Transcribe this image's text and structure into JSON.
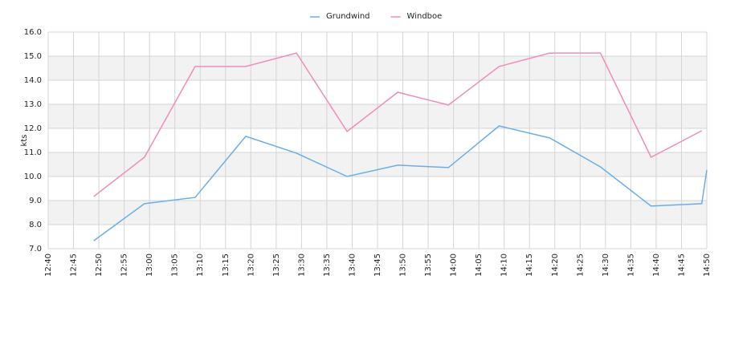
{
  "chart_data": {
    "type": "line",
    "ylabel": "kts",
    "x": [
      "12:49",
      "12:59",
      "13:09",
      "13:19",
      "13:29",
      "13:39",
      "13:49",
      "13:59",
      "14:09",
      "14:19",
      "14:29",
      "14:39",
      "14:49",
      "14:50"
    ],
    "series": [
      {
        "name": "Grundwind",
        "color": "#6aaee8",
        "values": [
          7.33,
          8.87,
          9.13,
          11.67,
          10.97,
          10.0,
          10.47,
          10.37,
          12.1,
          11.6,
          10.4,
          8.77,
          8.87,
          10.27
        ]
      },
      {
        "name": "Windboe",
        "color": "#f08cbd",
        "values": [
          9.17,
          10.8,
          14.57,
          14.57,
          15.13,
          11.87,
          13.5,
          12.97,
          14.57,
          15.13,
          15.13,
          10.8,
          11.9,
          null
        ]
      }
    ],
    "xlim": [
      "12:40",
      "14:50"
    ],
    "xticks": [
      "12:40",
      "12:45",
      "12:50",
      "12:55",
      "13:00",
      "13:05",
      "13:10",
      "13:15",
      "13:20",
      "13:25",
      "13:30",
      "13:35",
      "13:40",
      "13:45",
      "13:50",
      "13:55",
      "14:00",
      "14:05",
      "14:10",
      "14:15",
      "14:20",
      "14:25",
      "14:30",
      "14:35",
      "14:40",
      "14:45",
      "14:50"
    ],
    "ylim": [
      7,
      16
    ],
    "yticks": [
      {
        "value": 7,
        "label": "7.0"
      },
      {
        "value": 8,
        "label": "8.0"
      },
      {
        "value": 9,
        "label": "9.0"
      },
      {
        "value": 10,
        "label": "10.0"
      },
      {
        "value": 11,
        "label": "11.0"
      },
      {
        "value": 12,
        "label": "12.0"
      },
      {
        "value": 13,
        "label": "13.0"
      },
      {
        "value": 14,
        "label": "14.0"
      },
      {
        "value": 15,
        "label": "15.0"
      },
      {
        "value": 16,
        "label": "16.0"
      }
    ],
    "grid": true,
    "legend": "top"
  }
}
